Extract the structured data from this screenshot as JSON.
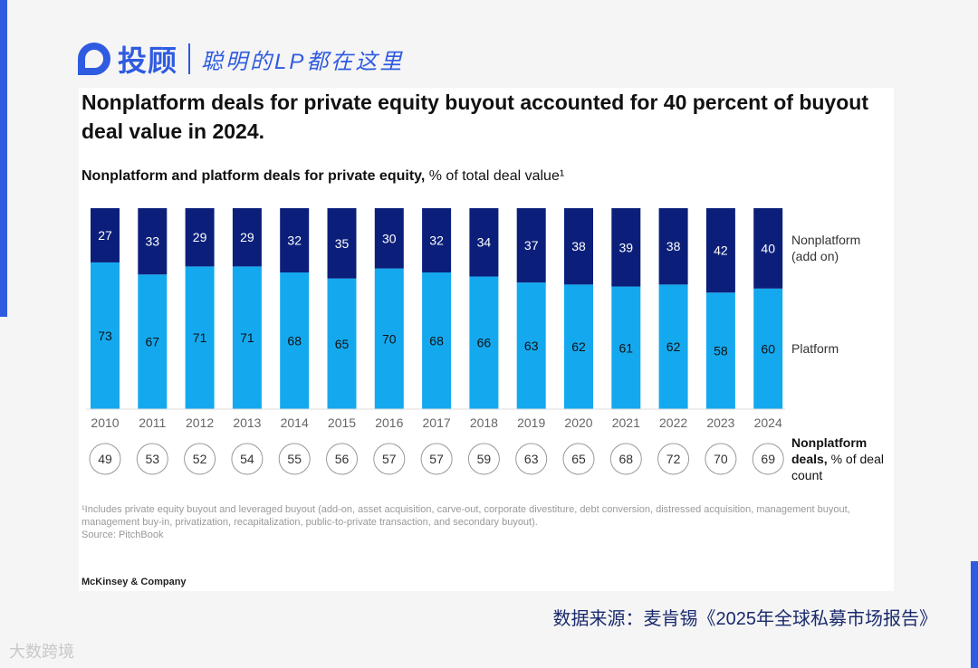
{
  "brand": {
    "name": "投顾",
    "slogan": "聪明的LP都在这里"
  },
  "title": "Nonplatform deals for private equity buyout accounted for 40 percent of buyout deal value in 2024.",
  "subtitle_bold": "Nonplatform and platform deals for private equity,",
  "subtitle_rest": " % of total deal value¹",
  "chart_data": {
    "type": "bar",
    "stacked": true,
    "categories": [
      "2010",
      "2011",
      "2012",
      "2013",
      "2014",
      "2015",
      "2016",
      "2017",
      "2018",
      "2019",
      "2020",
      "2021",
      "2022",
      "2023",
      "2024"
    ],
    "series": [
      {
        "name": "Platform",
        "values": [
          73,
          67,
          71,
          71,
          68,
          65,
          70,
          68,
          66,
          63,
          62,
          61,
          62,
          58,
          60
        ],
        "color": "#14a9ef"
      },
      {
        "name": "Nonplatform (add on)",
        "values": [
          27,
          33,
          29,
          29,
          32,
          35,
          30,
          32,
          34,
          37,
          38,
          39,
          38,
          42,
          40
        ],
        "color": "#0b1f7a"
      }
    ],
    "ylim": [
      0,
      100
    ],
    "deal_count": {
      "label_bold": "Nonplatform deals,",
      "label_rest": "% of deal count",
      "values": [
        49,
        53,
        52,
        54,
        55,
        56,
        57,
        57,
        59,
        63,
        65,
        68,
        72,
        70,
        69
      ]
    }
  },
  "legend": {
    "nonplatform": "Nonplatform (add on)",
    "platform": "Platform"
  },
  "footnote": "¹Includes private equity buyout and leveraged buyout (add-on, asset acquisition, carve-out, corporate divestiture, debt conversion, distressed acquisition, management buyout, management buy-in, privatization, recapitalization, public-to-private transaction, and secondary buyout).",
  "source_note": "Source: PitchBook",
  "publisher": "McKinsey & Company",
  "data_source": "数据来源：麦肯锡《2025年全球私募市场报告》",
  "watermark": "大数跨境"
}
